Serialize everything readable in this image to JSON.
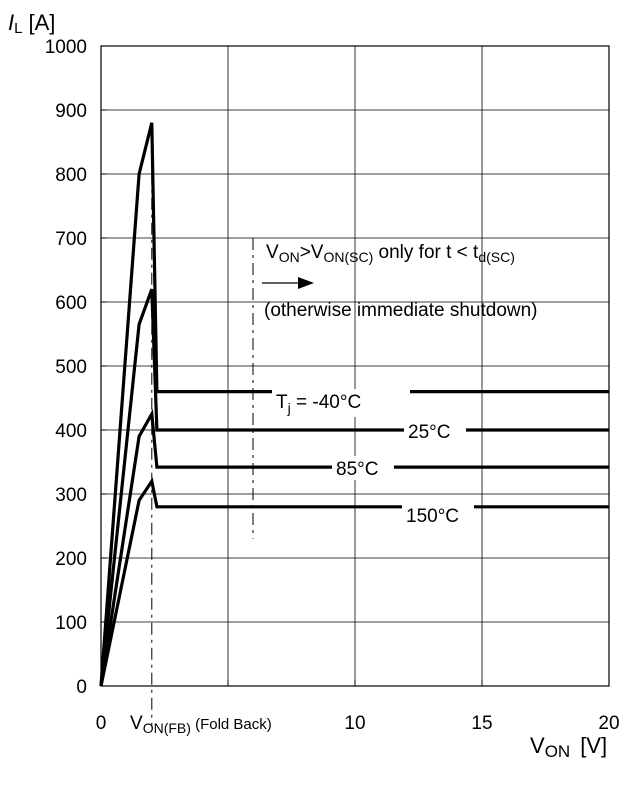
{
  "chart_data": {
    "type": "line",
    "ylabel": {
      "symbol": "I",
      "sub": "L",
      "unit": "[A]"
    },
    "xlabel": {
      "symbol": "V",
      "sub": "ON",
      "unit": "[V]"
    },
    "xlim": [
      0,
      20
    ],
    "ylim": [
      0,
      1000
    ],
    "x_ticks": [
      "0",
      "5",
      "10",
      "15",
      "20"
    ],
    "y_ticks": [
      "0",
      "100",
      "200",
      "300",
      "400",
      "500",
      "600",
      "700",
      "800",
      "900",
      "1000"
    ],
    "grid": true,
    "series": [
      {
        "name": "T_j = -40°C",
        "points": [
          [
            0,
            0
          ],
          [
            1.5,
            800
          ],
          [
            2,
            880
          ],
          [
            2.2,
            460
          ],
          [
            20,
            460
          ]
        ]
      },
      {
        "name": "25°C",
        "points": [
          [
            0,
            0
          ],
          [
            1.5,
            565
          ],
          [
            2,
            620
          ],
          [
            2.2,
            400
          ],
          [
            20,
            400
          ]
        ]
      },
      {
        "name": "85°C",
        "points": [
          [
            0,
            0
          ],
          [
            1.5,
            390
          ],
          [
            2,
            425
          ],
          [
            2.2,
            342
          ],
          [
            20,
            342
          ]
        ]
      },
      {
        "name": "150°C",
        "points": [
          [
            0,
            0
          ],
          [
            1.5,
            290
          ],
          [
            2,
            320
          ],
          [
            2.2,
            280
          ],
          [
            20,
            280
          ]
        ]
      }
    ],
    "series_labels": [
      {
        "prefix": "T",
        "sub": "j",
        "text": " = -40°C"
      },
      {
        "text": "25°C"
      },
      {
        "text": "85°C"
      },
      {
        "text": "150°C"
      }
    ],
    "annotations": {
      "condition": {
        "v": "V",
        "on": "ON",
        "gt": ">V",
        "onsc": "ON(SC)",
        "only": " only for t < t",
        "dsc": "d(SC)"
      },
      "otherwise": "(otherwise immediate shutdown)",
      "foldback": {
        "v": "V",
        "sub": "ON(FB)",
        "text": " (Fold Back)"
      }
    }
  }
}
